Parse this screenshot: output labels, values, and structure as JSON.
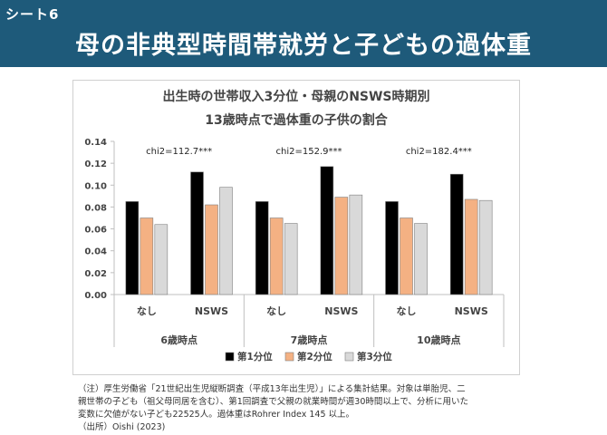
{
  "slide": {
    "sheet_label": "シート6",
    "title": "母の非典型時間帯就労と子どもの過体重"
  },
  "colors": {
    "header_bg": "#1e5a7a",
    "series_1": "#000000",
    "series_2": "#f4b183",
    "series_3": "#d9d9d9"
  },
  "chart_data": {
    "type": "bar",
    "title_lines": [
      "出生時の世帯収入3分位・母親のNSWS時期別",
      "13歳時点で過体重の子供の割合"
    ],
    "groups": [
      {
        "label": "6歳時点",
        "chi": "chi2=112.7***",
        "categories": [
          {
            "label": "なし",
            "values": [
              0.085,
              0.07,
              0.064
            ]
          },
          {
            "label": "NSWS",
            "values": [
              0.112,
              0.082,
              0.098
            ]
          }
        ]
      },
      {
        "label": "7歳時点",
        "chi": "chi2=152.9***",
        "categories": [
          {
            "label": "なし",
            "values": [
              0.085,
              0.07,
              0.065
            ]
          },
          {
            "label": "NSWS",
            "values": [
              0.117,
              0.089,
              0.091
            ]
          }
        ]
      },
      {
        "label": "10歳時点",
        "chi": "chi2=182.4***",
        "categories": [
          {
            "label": "なし",
            "values": [
              0.085,
              0.07,
              0.065
            ]
          },
          {
            "label": "NSWS",
            "values": [
              0.11,
              0.087,
              0.086
            ]
          }
        ]
      }
    ],
    "series": [
      {
        "name": "第1分位",
        "color": "#000000"
      },
      {
        "name": "第2分位",
        "color": "#f4b183"
      },
      {
        "name": "第3分位",
        "color": "#d9d9d9"
      }
    ],
    "ylim": [
      0,
      0.14
    ],
    "yticks": [
      "0.00",
      "0.02",
      "0.04",
      "0.06",
      "0.08",
      "0.10",
      "0.12",
      "0.14"
    ],
    "grid": false,
    "legend_position": "bottom"
  },
  "notes": [
    "（注）厚生労働省「21世紀出生児縦断調査（平成13年出生児）」による集計結果。対象は単胎児、二",
    "親世帯の子ども（祖父母同居を含む）、第1回調査で父親の就業時間が週30時間以上で、分析に用いた",
    "変数に欠値がない子ども22525人。過体重はRohrer Index 145 以上。",
    "（出所）Oishi (2023)"
  ]
}
